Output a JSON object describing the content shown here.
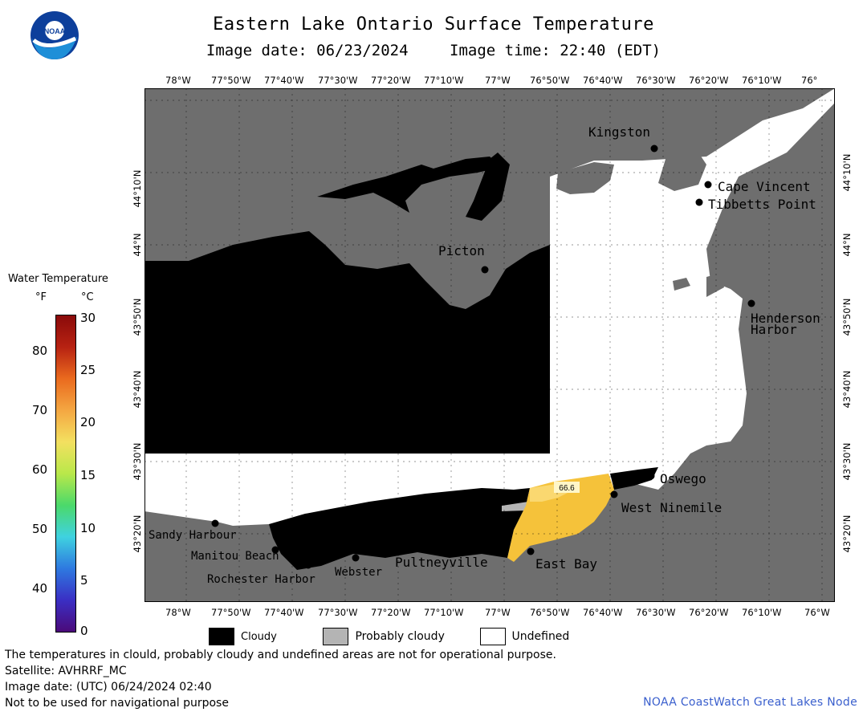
{
  "header": {
    "title": "Eastern Lake Ontario Surface Temperature",
    "image_date": "Image date: 06/23/2024",
    "image_time": "Image time: 22:40 (EDT)"
  },
  "logo": {
    "text": "NOAA"
  },
  "axes": {
    "top_ticks": [
      "78°W",
      "77°50'W",
      "77°40'W",
      "77°30'W",
      "77°20'W",
      "77°10'W",
      "77°W",
      "76°50'W",
      "76°40'W",
      "76°30'W",
      "76°20'W",
      "76°10'W",
      "76°"
    ],
    "bottom_ticks": [
      "78°W",
      "77°50'W",
      "77°40'W",
      "77°30'W",
      "77°20'W",
      "77°10'W",
      "77°W",
      "76°50'W",
      "76°40'W",
      "76°30'W",
      "76°20'W",
      "76°10'W",
      "76°W"
    ],
    "lat_ticks": [
      "44°10'N",
      "44°N",
      "43°50'N",
      "43°40'N",
      "43°30'N",
      "43°20'N"
    ]
  },
  "places": [
    {
      "name": "Kingston"
    },
    {
      "name": "Cape Vincent"
    },
    {
      "name": "Tibbetts Point"
    },
    {
      "name": "Picton"
    },
    {
      "name": "Henderson"
    },
    {
      "name": "Harbor"
    },
    {
      "name": "Oswego"
    },
    {
      "name": "West Ninemile"
    },
    {
      "name": "Sandy Harbour"
    },
    {
      "name": "Manitou Beach"
    },
    {
      "name": "Rochester Harbor"
    },
    {
      "name": "Webster"
    },
    {
      "name": "Pultneyville"
    },
    {
      "name": "East Bay"
    }
  ],
  "temp_label": "66.6",
  "colorbar": {
    "title": "Water Temperature",
    "unit_f": "°F",
    "unit_c": "°C",
    "f_ticks": [
      "80",
      "70",
      "60",
      "50",
      "40"
    ],
    "c_ticks": [
      "30",
      "25",
      "20",
      "15",
      "10",
      "5",
      "0"
    ],
    "colors": [
      "#4b0a7a",
      "#3a2fc4",
      "#2e79e0",
      "#3fd2e0",
      "#4bd96a",
      "#b9e84a",
      "#f3e060",
      "#f4a742",
      "#ea6a1e",
      "#b72212",
      "#8a0a0a"
    ]
  },
  "legend": {
    "cloudy": "Cloudy",
    "probably_cloudy": "Probably cloudy",
    "undefined": "Undefined"
  },
  "footer": {
    "line1": "The temperatures in clould, probably cloudy and undefined areas are not for operational purpose.",
    "line2": "Satellite: AVHRRF_MC",
    "line3": "Image date: (UTC) 06/24/2024  02:40",
    "line4": "Not to be used for navigational purpose",
    "credit": "NOAA CoastWatch Great Lakes Node"
  },
  "colors": {
    "land": "#6e6e6e",
    "cloud": "#000000",
    "undefined": "#ffffff",
    "prob_cloud": "#b4b4b4",
    "warm": "#f5c23a",
    "link": "#3a5fcd"
  }
}
